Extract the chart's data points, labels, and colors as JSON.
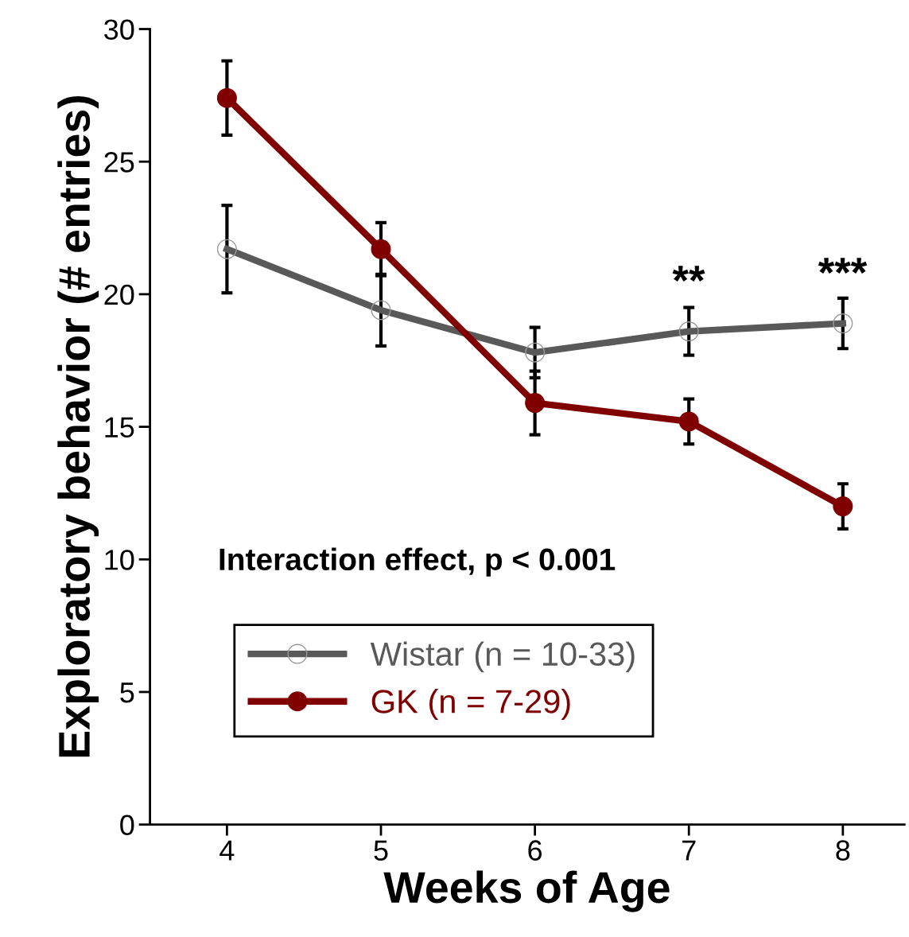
{
  "chart_data": {
    "type": "line",
    "xlabel": "Weeks of Age",
    "ylabel": "Exploratory behavior (# entries)",
    "x": [
      4,
      5,
      6,
      7,
      8
    ],
    "series": [
      {
        "name": "Wistar (n = 10-33)",
        "color": "#595959",
        "marker": "circle",
        "values": [
          21.7,
          19.4,
          17.8,
          18.6,
          18.9
        ],
        "errors": [
          1.65,
          1.35,
          0.95,
          0.9,
          0.95
        ]
      },
      {
        "name": "GK (n = 7-29)",
        "color": "#800000",
        "marker": "circle",
        "values": [
          27.4,
          21.7,
          15.9,
          15.2,
          12.0
        ],
        "errors": [
          1.4,
          1.0,
          1.2,
          0.85,
          0.85
        ]
      }
    ],
    "xlim": [
      3.5,
      8.4
    ],
    "xticks": [
      4,
      5,
      6,
      7,
      8
    ],
    "ylim": [
      0,
      30
    ],
    "yticks": [
      0,
      5,
      10,
      15,
      20,
      25,
      30
    ],
    "annotations": [
      "**",
      "***",
      "Interaction effect, p < 0.001"
    ],
    "legend": "bottom left",
    "grid": false
  }
}
